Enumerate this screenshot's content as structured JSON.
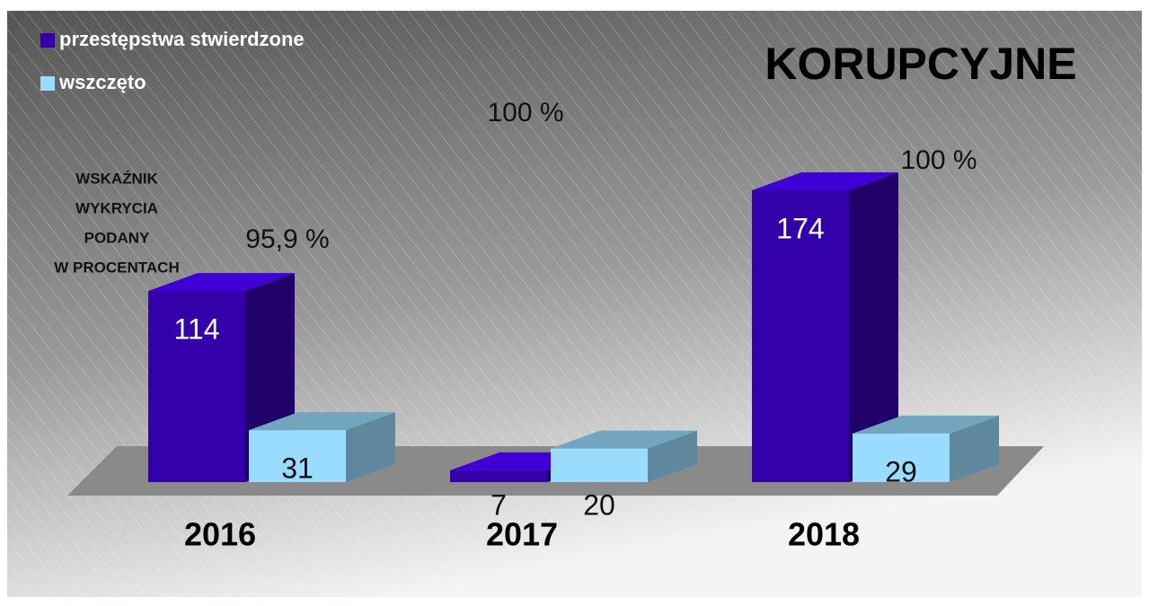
{
  "chart_data": {
    "type": "bar3d",
    "title": "KORUPCYJNE",
    "categories": [
      "2016",
      "2017",
      "2018"
    ],
    "series": [
      {
        "name": "przestępstwa stwierdzone",
        "color": "#3300aa",
        "values": [
          114,
          7,
          174
        ]
      },
      {
        "name": "wszczęto",
        "color": "#99dcff",
        "values": [
          31,
          20,
          29
        ]
      }
    ],
    "annotations": [
      "95,9 %",
      "100 %",
      "100 %"
    ],
    "note": [
      "WSKAŹNIK",
      "WYKRYCIA",
      "PODANY",
      "W PROCENTACH"
    ]
  }
}
